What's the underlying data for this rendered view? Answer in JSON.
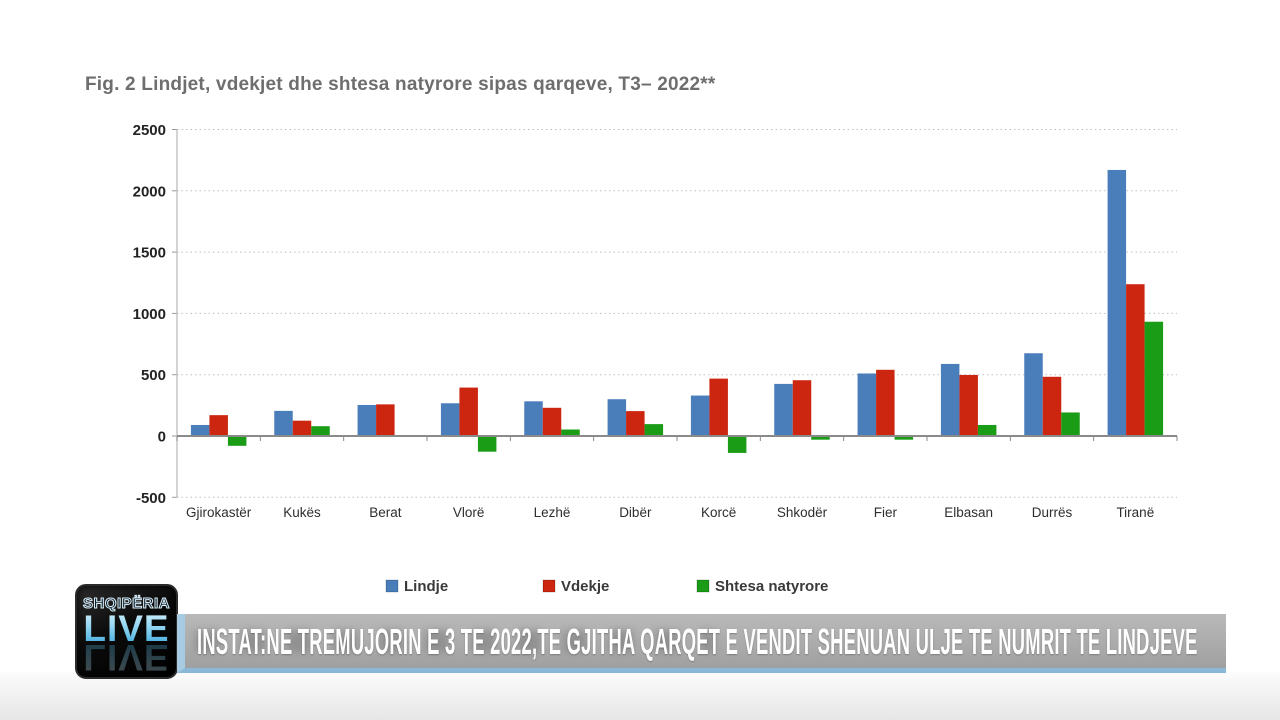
{
  "figure": {
    "source_label": "INSTAT"
  },
  "chart_data": {
    "type": "bar",
    "title": "Fig. 2 Lindjet, vdekjet dhe shtesa natyrore sipas qarqeve, T3– 2022**",
    "categories": [
      "Gjirokastër",
      "Kukës",
      "Berat",
      "Vlorë",
      "Lezhë",
      "Dibër",
      "Korcë",
      "Shkodër",
      "Fier",
      "Elbasan",
      "Durrës",
      "Tiranë"
    ],
    "series": [
      {
        "name": "Lindje",
        "color": "#4a7ebb",
        "values": [
          90,
          205,
          253,
          267,
          283,
          300,
          330,
          425,
          510,
          588,
          675,
          2170
        ]
      },
      {
        "name": "Vdekje",
        "color": "#cc2510",
        "values": [
          170,
          125,
          258,
          395,
          230,
          203,
          468,
          455,
          540,
          498,
          483,
          1238
        ]
      },
      {
        "name": "Shtesa natyrore",
        "color": "#1a9c16",
        "values": [
          -80,
          80,
          -5,
          -128,
          53,
          97,
          -138,
          -30,
          -30,
          90,
          192,
          932
        ]
      }
    ],
    "ylim": [
      -500,
      2500
    ],
    "ytick_step": 500,
    "yticks": [
      "-500",
      "0",
      "500",
      "1000",
      "1500",
      "2000",
      "2500"
    ],
    "grid": "horizontal-dotted",
    "legend_position": "bottom"
  },
  "ticker": {
    "text": "INSTAT:NE TREMUJORIN E 3 TE 2022,TE GJITHA QARQET E VENDIT SHENUAN ULJE TE NUMRIT TE LINDJEVE"
  },
  "logo": {
    "line1": "SHQIPËRIA",
    "line2": "LIVE"
  }
}
